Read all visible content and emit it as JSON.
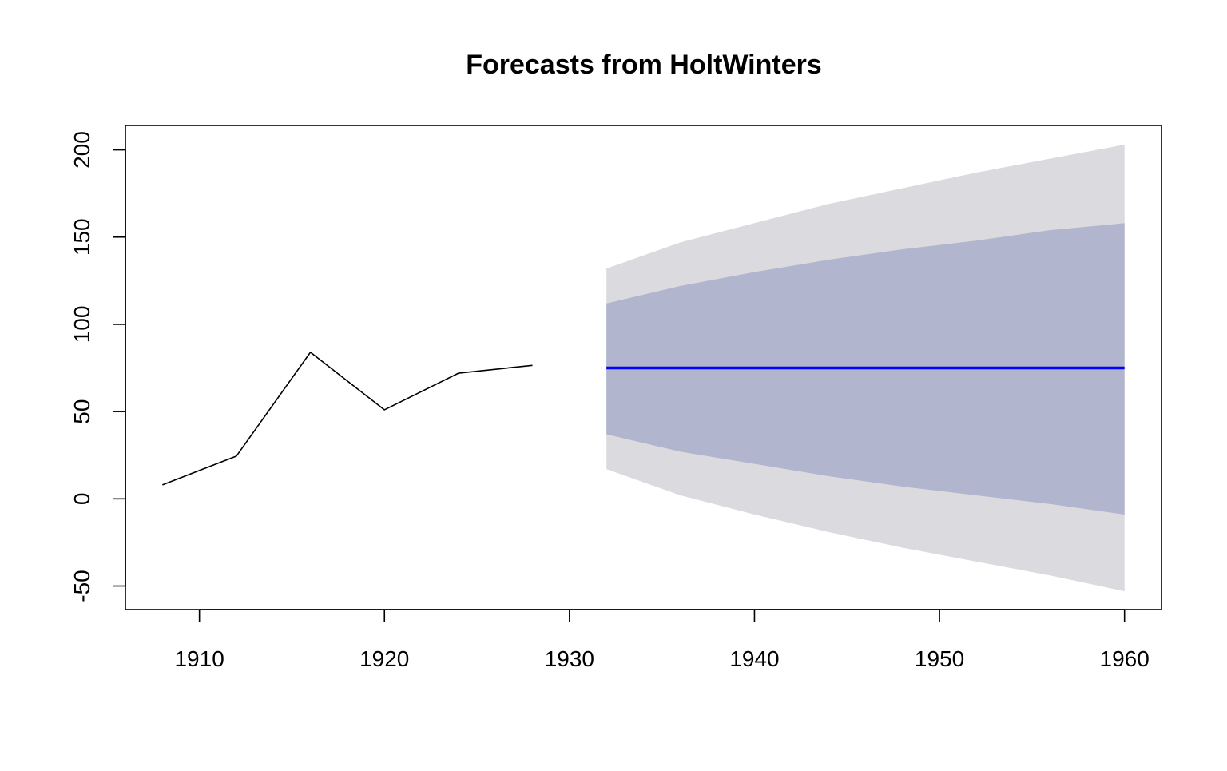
{
  "chart_data": {
    "type": "line",
    "title": "Forecasts from HoltWinters",
    "xlabel": "",
    "ylabel": "",
    "xlim": [
      1906,
      1962
    ],
    "ylim": [
      -63.5,
      214
    ],
    "x_ticks": [
      1910,
      1920,
      1930,
      1940,
      1950,
      1960
    ],
    "x_tick_labels": [
      "1910",
      "1920",
      "1930",
      "1940",
      "1950",
      "1960"
    ],
    "y_ticks": [
      -50,
      0,
      50,
      100,
      150,
      200
    ],
    "y_tick_labels": [
      "-50",
      "0",
      "50",
      "100",
      "150",
      "200"
    ],
    "grid": false,
    "legend": "none",
    "series": [
      {
        "role": "observed",
        "color": "#000000",
        "x": [
          1908,
          1912,
          1916,
          1920,
          1924,
          1928
        ],
        "y": [
          8,
          24.5,
          84,
          51,
          72,
          76.5
        ]
      },
      {
        "role": "forecast",
        "color": "#0000ff",
        "x": [
          1932,
          1960
        ],
        "y": [
          75,
          75
        ]
      }
    ],
    "intervals": [
      {
        "level": "95%",
        "color": "#dbdbdf",
        "x": [
          1932,
          1936,
          1940,
          1944,
          1948,
          1952,
          1956,
          1960
        ],
        "lower": [
          17,
          2,
          -9,
          -19,
          -28,
          -36,
          -44,
          -53
        ],
        "upper": [
          132,
          147,
          158,
          169,
          178,
          187,
          195,
          203
        ]
      },
      {
        "level": "80%",
        "color": "#b1b5ce",
        "x": [
          1932,
          1936,
          1940,
          1944,
          1948,
          1952,
          1956,
          1960
        ],
        "lower": [
          37,
          27,
          20,
          13,
          7,
          2,
          -3,
          -9
        ],
        "upper": [
          112,
          122,
          130,
          137,
          143,
          148,
          154,
          158
        ]
      }
    ]
  }
}
